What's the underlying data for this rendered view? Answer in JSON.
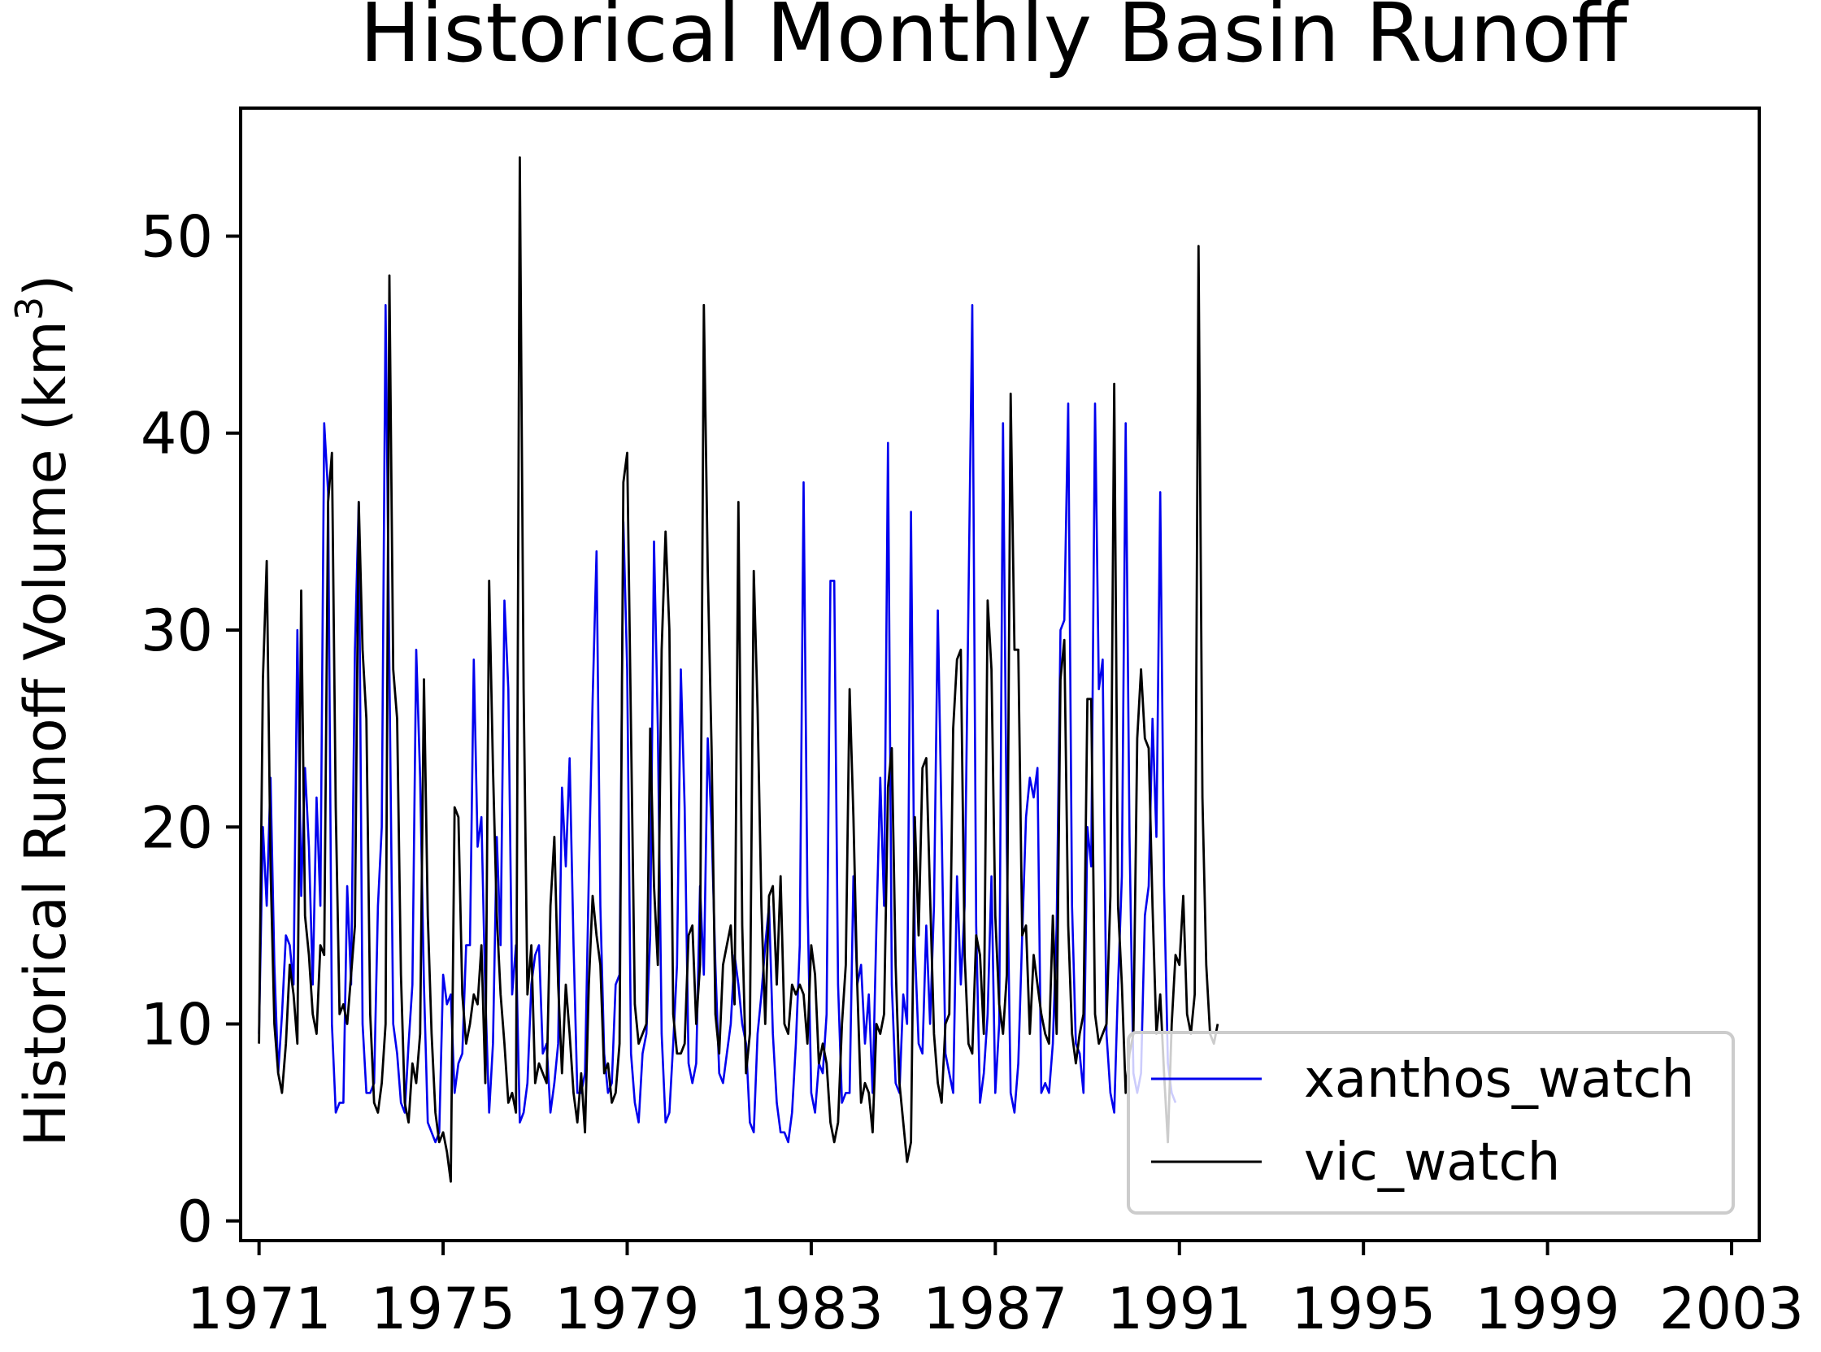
{
  "chart_data": {
    "type": "line",
    "title": "Historical Monthly Basin Runoff",
    "ylabel_main": "Historical Runoff Volume (km",
    "ylabel_sup": "3",
    "ylabel_end": ")",
    "xlabel": "",
    "xlim": [
      1970.6,
      2003.6
    ],
    "ylim": [
      -1,
      56.5
    ],
    "xticks": [
      1971,
      1975,
      1979,
      1983,
      1987,
      1991,
      1995,
      1999,
      2003
    ],
    "xtick_labels": [
      "1971",
      "1975",
      "1979",
      "1983",
      "1987",
      "1991",
      "1995",
      "1999",
      "2003"
    ],
    "yticks": [
      0,
      10,
      20,
      30,
      40,
      50
    ],
    "ytick_labels": [
      "0",
      "10",
      "20",
      "30",
      "40",
      "50"
    ],
    "grid": false,
    "legend_position": "lower-right",
    "x_start": 1971,
    "series": [
      {
        "name": "xanthos_watch",
        "color": "#0000ee",
        "values": [
          9.5,
          20.0,
          16.0,
          22.5,
          13.0,
          7.5,
          10.5,
          14.5,
          14.0,
          12.0,
          30.0,
          16.5,
          23.0,
          19.0,
          12.0,
          21.5,
          16.0,
          40.5,
          37.0,
          10.0,
          5.5,
          6.0,
          6.0,
          17.0,
          12.0,
          29.0,
          36.5,
          10.0,
          6.5,
          6.5,
          7.0,
          16.0,
          20.0,
          46.5,
          28.0,
          10.0,
          8.5,
          6.0,
          5.5,
          9.0,
          12.0,
          29.0,
          22.5,
          12.0,
          5.0,
          4.5,
          4.0,
          4.5,
          12.5,
          11.0,
          11.5,
          6.5,
          8.0,
          8.5,
          14.0,
          14.0,
          28.5,
          19.0,
          20.5,
          11.5,
          5.5,
          9.0,
          19.5,
          14.0,
          31.5,
          27.0,
          11.5,
          14.0,
          5.0,
          5.5,
          7.0,
          12.0,
          13.5,
          14.0,
          8.5,
          9.0,
          5.5,
          7.0,
          9.0,
          22.0,
          18.0,
          23.5,
          14.0,
          6.5,
          6.5,
          7.5,
          17.5,
          26.5,
          34.0,
          16.0,
          8.5,
          6.5,
          7.0,
          12.0,
          12.5,
          35.5,
          28.0,
          8.5,
          6.0,
          5.0,
          8.5,
          9.5,
          14.5,
          34.5,
          25.0,
          9.5,
          5.0,
          5.5,
          9.0,
          13.0,
          28.0,
          21.0,
          8.0,
          7.0,
          8.0,
          17.0,
          12.5,
          24.5,
          20.0,
          13.0,
          7.5,
          7.0,
          8.5,
          10.0,
          13.5,
          12.0,
          10.0,
          9.0,
          5.0,
          4.5,
          9.5,
          11.5,
          14.0,
          16.0,
          9.5,
          6.0,
          4.5,
          4.5,
          4.0,
          5.5,
          9.0,
          14.0,
          37.5,
          16.5,
          6.5,
          5.5,
          8.0,
          7.5,
          10.5,
          32.5,
          32.5,
          12.0,
          6.0,
          6.5,
          6.5,
          17.5,
          12.0,
          13.0,
          9.0,
          11.5,
          6.5,
          15.0,
          22.5,
          16.0,
          39.5,
          12.0,
          7.0,
          6.5,
          11.5,
          10.0,
          36.0,
          14.0,
          9.0,
          8.5,
          15.0,
          10.0,
          16.0,
          31.0,
          20.0,
          8.5,
          7.5,
          6.5,
          17.5,
          12.0,
          16.0,
          31.5,
          46.5,
          15.0,
          6.0,
          7.5,
          10.5,
          17.5,
          6.5,
          10.0,
          40.5,
          19.0,
          6.5,
          5.5,
          8.0,
          14.5,
          20.5,
          22.5,
          21.5,
          23.0,
          6.5,
          7.0,
          6.5,
          9.0,
          15.0,
          30.0,
          30.5,
          41.5,
          16.0,
          9.0,
          8.5,
          6.5,
          20.0,
          18.0,
          41.5,
          27.0,
          28.5,
          9.5,
          6.5,
          5.5,
          12.0,
          17.5,
          40.5,
          19.5,
          7.5,
          6.5,
          7.5,
          15.5,
          17.0,
          25.5,
          19.5,
          37.0,
          17.0,
          8.0,
          6.5,
          6.0
        ]
      },
      {
        "name": "vic_watch",
        "color": "#000000",
        "values": [
          9.0,
          27.5,
          33.5,
          18.0,
          10.0,
          7.5,
          6.5,
          9.0,
          13.0,
          11.5,
          9.0,
          32.0,
          15.5,
          13.5,
          10.5,
          9.5,
          14.0,
          13.5,
          36.5,
          39.0,
          21.0,
          10.5,
          11.0,
          10.0,
          12.5,
          15.0,
          36.5,
          29.0,
          25.5,
          10.5,
          6.0,
          5.5,
          7.0,
          10.0,
          48.0,
          28.0,
          25.5,
          12.5,
          6.0,
          5.0,
          8.0,
          7.0,
          9.5,
          27.5,
          15.5,
          9.5,
          5.5,
          4.0,
          4.5,
          3.5,
          2.0,
          21.0,
          20.5,
          11.5,
          9.0,
          10.0,
          11.5,
          11.0,
          14.0,
          7.0,
          32.5,
          23.0,
          15.5,
          11.5,
          9.0,
          6.0,
          6.5,
          5.5,
          54.0,
          27.0,
          11.5,
          14.0,
          7.0,
          8.0,
          7.5,
          7.0,
          16.0,
          19.5,
          12.0,
          7.5,
          12.0,
          9.5,
          6.5,
          5.0,
          7.5,
          4.5,
          12.0,
          16.5,
          14.5,
          13.0,
          7.5,
          8.0,
          6.0,
          6.5,
          9.0,
          37.5,
          39.0,
          25.0,
          11.0,
          9.0,
          9.5,
          10.0,
          25.0,
          17.0,
          13.0,
          29.0,
          35.0,
          30.0,
          10.5,
          8.5,
          8.5,
          9.0,
          14.5,
          15.0,
          10.0,
          13.0,
          46.5,
          33.0,
          24.0,
          10.5,
          8.5,
          13.0,
          14.0,
          15.0,
          11.0,
          36.5,
          15.0,
          7.5,
          9.5,
          33.0,
          26.0,
          16.0,
          10.0,
          16.5,
          17.0,
          12.0,
          17.5,
          10.0,
          9.5,
          12.0,
          11.5,
          12.0,
          11.5,
          9.0,
          14.0,
          12.5,
          8.0,
          9.0,
          8.0,
          5.0,
          4.0,
          5.0,
          10.0,
          13.0,
          27.0,
          20.5,
          12.0,
          6.0,
          7.0,
          6.5,
          4.5,
          10.0,
          9.5,
          10.5,
          22.0,
          24.0,
          13.0,
          7.0,
          5.0,
          3.0,
          4.0,
          20.5,
          14.5,
          23.0,
          23.5,
          16.5,
          9.5,
          7.0,
          6.0,
          10.0,
          10.5,
          25.0,
          28.5,
          29.0,
          13.5,
          9.0,
          8.5,
          14.5,
          13.5,
          9.5,
          31.5,
          28.0,
          15.5,
          11.0,
          9.5,
          12.5,
          42.0,
          29.0,
          29.0,
          14.5,
          15.0,
          9.5,
          13.5,
          12.0,
          10.5,
          9.5,
          9.0,
          15.5,
          9.5,
          27.5,
          29.5,
          15.0,
          9.5,
          8.0,
          9.5,
          10.5,
          26.5,
          26.5,
          10.5,
          9.0,
          9.5,
          10.0,
          16.5,
          42.5,
          16.0,
          12.0,
          6.5,
          8.5,
          9.5,
          24.5,
          28.0,
          24.5,
          24.0,
          16.0,
          9.5,
          11.5,
          7.5,
          4.0,
          10.0,
          13.5,
          13.0,
          16.5,
          10.5,
          9.5,
          11.5,
          49.5,
          21.5,
          13.0,
          9.5,
          9.0,
          10.0
        ]
      }
    ]
  }
}
